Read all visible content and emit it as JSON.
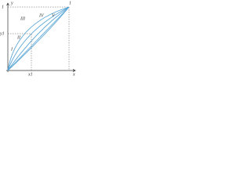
{
  "axes": {
    "y_label": "y",
    "x_label": "x",
    "y_one": "1",
    "x_one": "1",
    "x1": "x1",
    "y1": "y1"
  },
  "curves": [
    "I",
    "II",
    "III",
    "IV",
    "V"
  ]
}
